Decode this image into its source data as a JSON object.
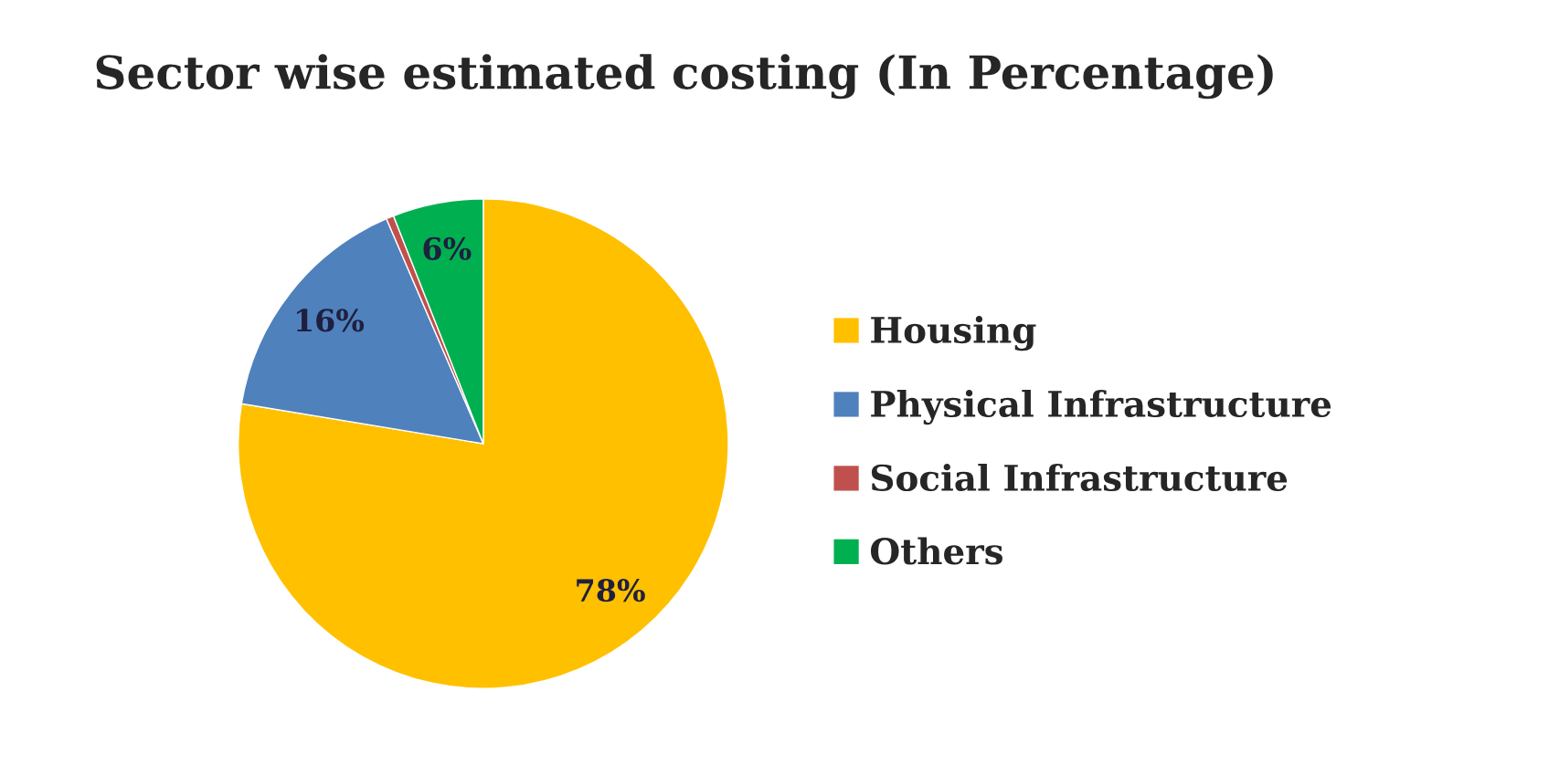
{
  "chart_data": {
    "type": "pie",
    "title": "Sector wise estimated costing (In Percentage)",
    "categories": [
      "Housing",
      "Physical Infrastructure",
      "Social Infrastructure",
      "Others"
    ],
    "values": [
      78,
      16,
      0.5,
      6
    ],
    "colors": [
      "#ffc000",
      "#4f81bd",
      "#c0504d",
      "#00b050"
    ],
    "value_labels": [
      "78%",
      "16%",
      null,
      "6%"
    ],
    "legend": "right"
  }
}
